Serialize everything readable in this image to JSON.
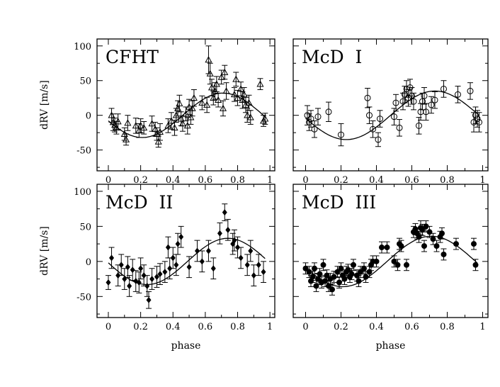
{
  "chart_data": [
    {
      "type": "scatter",
      "title": "CFHT",
      "xlabel": "",
      "ylabel": "dRV [m/s]",
      "xlim": [
        -0.07,
        1.03
      ],
      "ylim": [
        -80,
        110
      ],
      "xticks": [
        "0",
        "0.2",
        "0.4",
        "0.6",
        "0.8",
        "1"
      ],
      "yticks": [
        "-50",
        "0",
        "50",
        "100"
      ],
      "marker": "triangle",
      "fit_curve": {
        "amplitude": 32,
        "peak_phase": 0.71
      },
      "points": [
        {
          "x": 0.02,
          "y": 0,
          "err": 10
        },
        {
          "x": 0.03,
          "y": -10,
          "err": 12
        },
        {
          "x": 0.04,
          "y": -14,
          "err": 10
        },
        {
          "x": 0.05,
          "y": -18,
          "err": 9
        },
        {
          "x": 0.06,
          "y": -9,
          "err": 11
        },
        {
          "x": 0.1,
          "y": -27,
          "err": 9
        },
        {
          "x": 0.11,
          "y": -35,
          "err": 8
        },
        {
          "x": 0.12,
          "y": -11,
          "err": 11
        },
        {
          "x": 0.17,
          "y": -15,
          "err": 11
        },
        {
          "x": 0.19,
          "y": -22,
          "err": 10
        },
        {
          "x": 0.2,
          "y": -15,
          "err": 10
        },
        {
          "x": 0.22,
          "y": -18,
          "err": 9
        },
        {
          "x": 0.27,
          "y": -12,
          "err": 11
        },
        {
          "x": 0.29,
          "y": -20,
          "err": 10
        },
        {
          "x": 0.3,
          "y": -27,
          "err": 9
        },
        {
          "x": 0.31,
          "y": -38,
          "err": 8
        },
        {
          "x": 0.32,
          "y": -24,
          "err": 12
        },
        {
          "x": 0.37,
          "y": -15,
          "err": 10
        },
        {
          "x": 0.39,
          "y": -8,
          "err": 12
        },
        {
          "x": 0.41,
          "y": -18,
          "err": 11
        },
        {
          "x": 0.42,
          "y": 0,
          "err": 10
        },
        {
          "x": 0.43,
          "y": 10,
          "err": 11
        },
        {
          "x": 0.44,
          "y": 17,
          "err": 12
        },
        {
          "x": 0.45,
          "y": -5,
          "err": 10
        },
        {
          "x": 0.46,
          "y": -12,
          "err": 11
        },
        {
          "x": 0.48,
          "y": 2,
          "err": 10
        },
        {
          "x": 0.49,
          "y": -15,
          "err": 12
        },
        {
          "x": 0.5,
          "y": 12,
          "err": 11
        },
        {
          "x": 0.51,
          "y": -3,
          "err": 10
        },
        {
          "x": 0.52,
          "y": 10,
          "err": 11
        },
        {
          "x": 0.53,
          "y": 25,
          "err": 12
        },
        {
          "x": 0.58,
          "y": 18,
          "err": 10
        },
        {
          "x": 0.61,
          "y": 15,
          "err": 11
        },
        {
          "x": 0.62,
          "y": 80,
          "err": 20
        },
        {
          "x": 0.63,
          "y": 60,
          "err": 15
        },
        {
          "x": 0.64,
          "y": 40,
          "err": 12
        },
        {
          "x": 0.65,
          "y": 25,
          "err": 10
        },
        {
          "x": 0.66,
          "y": 35,
          "err": 12
        },
        {
          "x": 0.67,
          "y": 45,
          "err": 11
        },
        {
          "x": 0.68,
          "y": 22,
          "err": 10
        },
        {
          "x": 0.7,
          "y": 55,
          "err": 10
        },
        {
          "x": 0.71,
          "y": 10,
          "err": 11
        },
        {
          "x": 0.72,
          "y": 62,
          "err": 10
        },
        {
          "x": 0.73,
          "y": 35,
          "err": 12
        },
        {
          "x": 0.78,
          "y": 30,
          "err": 10
        },
        {
          "x": 0.79,
          "y": 52,
          "err": 10
        },
        {
          "x": 0.8,
          "y": 25,
          "err": 11
        },
        {
          "x": 0.82,
          "y": 38,
          "err": 10
        },
        {
          "x": 0.83,
          "y": 22,
          "err": 12
        },
        {
          "x": 0.84,
          "y": 30,
          "err": 10
        },
        {
          "x": 0.85,
          "y": 15,
          "err": 11
        },
        {
          "x": 0.86,
          "y": 0,
          "err": 10
        },
        {
          "x": 0.87,
          "y": 18,
          "err": 11
        },
        {
          "x": 0.88,
          "y": -3,
          "err": 10
        },
        {
          "x": 0.94,
          "y": 45,
          "err": 8
        },
        {
          "x": 0.96,
          "y": -8,
          "err": 8
        },
        {
          "x": 0.97,
          "y": -5,
          "err": 8
        }
      ]
    },
    {
      "type": "scatter",
      "title": "McD  I",
      "xlabel": "",
      "ylabel": "",
      "xlim": [
        -0.07,
        1.03
      ],
      "ylim": [
        -80,
        110
      ],
      "xticks": [
        "0",
        "0.2",
        "0.4",
        "0.6",
        "0.8",
        "1"
      ],
      "yticks": [
        "-50",
        "0",
        "50",
        "100"
      ],
      "marker": "open-circle",
      "fit_curve": {
        "amplitude": 35,
        "peak_phase": 0.73
      },
      "points": [
        {
          "x": 0.01,
          "y": 0,
          "err": 14
        },
        {
          "x": 0.02,
          "y": -10,
          "err": 12
        },
        {
          "x": 0.03,
          "y": -5,
          "err": 12
        },
        {
          "x": 0.05,
          "y": -20,
          "err": 12
        },
        {
          "x": 0.07,
          "y": -2,
          "err": 12
        },
        {
          "x": 0.13,
          "y": 5,
          "err": 14
        },
        {
          "x": 0.2,
          "y": -28,
          "err": 16
        },
        {
          "x": 0.35,
          "y": 25,
          "err": 14
        },
        {
          "x": 0.36,
          "y": 0,
          "err": 12
        },
        {
          "x": 0.38,
          "y": -20,
          "err": 12
        },
        {
          "x": 0.41,
          "y": -35,
          "err": 10
        },
        {
          "x": 0.42,
          "y": -5,
          "err": 12
        },
        {
          "x": 0.5,
          "y": -2,
          "err": 12
        },
        {
          "x": 0.51,
          "y": 18,
          "err": 12
        },
        {
          "x": 0.53,
          "y": -18,
          "err": 12
        },
        {
          "x": 0.55,
          "y": 20,
          "err": 12
        },
        {
          "x": 0.56,
          "y": 30,
          "err": 12
        },
        {
          "x": 0.57,
          "y": 38,
          "err": 12
        },
        {
          "x": 0.58,
          "y": 25,
          "err": 12
        },
        {
          "x": 0.59,
          "y": 40,
          "err": 12
        },
        {
          "x": 0.6,
          "y": 28,
          "err": 12
        },
        {
          "x": 0.61,
          "y": 20,
          "err": 12
        },
        {
          "x": 0.64,
          "y": -15,
          "err": 12
        },
        {
          "x": 0.65,
          "y": 5,
          "err": 12
        },
        {
          "x": 0.66,
          "y": 20,
          "err": 12
        },
        {
          "x": 0.67,
          "y": 28,
          "err": 12
        },
        {
          "x": 0.68,
          "y": 5,
          "err": 12
        },
        {
          "x": 0.71,
          "y": 15,
          "err": 12
        },
        {
          "x": 0.73,
          "y": 22,
          "err": 12
        },
        {
          "x": 0.78,
          "y": 38,
          "err": 12
        },
        {
          "x": 0.86,
          "y": 30,
          "err": 12
        },
        {
          "x": 0.93,
          "y": 35,
          "err": 12
        },
        {
          "x": 0.95,
          "y": -10,
          "err": 14
        },
        {
          "x": 0.96,
          "y": 0,
          "err": 12
        },
        {
          "x": 0.97,
          "y": -5,
          "err": 12
        },
        {
          "x": 0.98,
          "y": -10,
          "err": 14
        }
      ]
    },
    {
      "type": "scatter",
      "title": "McD  II",
      "xlabel": "phase",
      "ylabel": "dRV [m/s]",
      "xlim": [
        -0.07,
        1.03
      ],
      "ylim": [
        -80,
        110
      ],
      "xticks": [
        "0",
        "0.2",
        "0.4",
        "0.6",
        "0.8",
        "1"
      ],
      "yticks": [
        "-50",
        "0",
        "50",
        "100"
      ],
      "marker": "filled-diamond",
      "fit_curve": {
        "amplitude": 33,
        "peak_phase": 0.74
      },
      "points": [
        {
          "x": 0.0,
          "y": -30,
          "err": 10
        },
        {
          "x": 0.02,
          "y": 5,
          "err": 15
        },
        {
          "x": 0.06,
          "y": -20,
          "err": 15
        },
        {
          "x": 0.08,
          "y": -5,
          "err": 15
        },
        {
          "x": 0.1,
          "y": -25,
          "err": 15
        },
        {
          "x": 0.12,
          "y": -8,
          "err": 15
        },
        {
          "x": 0.13,
          "y": -35,
          "err": 15
        },
        {
          "x": 0.15,
          "y": -12,
          "err": 15
        },
        {
          "x": 0.17,
          "y": -28,
          "err": 15
        },
        {
          "x": 0.19,
          "y": -30,
          "err": 15
        },
        {
          "x": 0.2,
          "y": -10,
          "err": 15
        },
        {
          "x": 0.22,
          "y": -20,
          "err": 15
        },
        {
          "x": 0.24,
          "y": -35,
          "err": 15
        },
        {
          "x": 0.25,
          "y": -55,
          "err": 12
        },
        {
          "x": 0.27,
          "y": -25,
          "err": 15
        },
        {
          "x": 0.3,
          "y": -22,
          "err": 15
        },
        {
          "x": 0.32,
          "y": -18,
          "err": 15
        },
        {
          "x": 0.35,
          "y": -15,
          "err": 15
        },
        {
          "x": 0.37,
          "y": 20,
          "err": 15
        },
        {
          "x": 0.38,
          "y": -10,
          "err": 15
        },
        {
          "x": 0.4,
          "y": 5,
          "err": 15
        },
        {
          "x": 0.42,
          "y": -5,
          "err": 15
        },
        {
          "x": 0.43,
          "y": 25,
          "err": 15
        },
        {
          "x": 0.45,
          "y": 35,
          "err": 15
        },
        {
          "x": 0.5,
          "y": -8,
          "err": 15
        },
        {
          "x": 0.55,
          "y": 15,
          "err": 15
        },
        {
          "x": 0.58,
          "y": 0,
          "err": 15
        },
        {
          "x": 0.62,
          "y": 15,
          "err": 15
        },
        {
          "x": 0.65,
          "y": -10,
          "err": 15
        },
        {
          "x": 0.69,
          "y": 40,
          "err": 15
        },
        {
          "x": 0.72,
          "y": 70,
          "err": 12
        },
        {
          "x": 0.74,
          "y": 45,
          "err": 15
        },
        {
          "x": 0.77,
          "y": 25,
          "err": 15
        },
        {
          "x": 0.78,
          "y": 30,
          "err": 15
        },
        {
          "x": 0.8,
          "y": 20,
          "err": 15
        },
        {
          "x": 0.82,
          "y": 5,
          "err": 15
        },
        {
          "x": 0.86,
          "y": -5,
          "err": 15
        },
        {
          "x": 0.88,
          "y": 15,
          "err": 15
        },
        {
          "x": 0.9,
          "y": -20,
          "err": 15
        },
        {
          "x": 0.93,
          "y": -5,
          "err": 15
        },
        {
          "x": 0.96,
          "y": -15,
          "err": 15
        }
      ]
    },
    {
      "type": "scatter",
      "title": "McD  III",
      "xlabel": "phase",
      "ylabel": "",
      "xlim": [
        -0.07,
        1.03
      ],
      "ylim": [
        -80,
        110
      ],
      "xticks": [
        "0",
        "0.2",
        "0.4",
        "0.6",
        "0.8",
        "1"
      ],
      "yticks": [
        "-50",
        "0",
        "50",
        "100"
      ],
      "marker": "filled-circle",
      "fit_curve": {
        "amplitude": 36,
        "peak_phase": 0.71
      },
      "points": [
        {
          "x": 0.0,
          "y": -10,
          "err": 8
        },
        {
          "x": 0.02,
          "y": -15,
          "err": 8
        },
        {
          "x": 0.03,
          "y": -28,
          "err": 8
        },
        {
          "x": 0.04,
          "y": -22,
          "err": 8
        },
        {
          "x": 0.05,
          "y": -10,
          "err": 8
        },
        {
          "x": 0.06,
          "y": -35,
          "err": 8
        },
        {
          "x": 0.07,
          "y": -25,
          "err": 8
        },
        {
          "x": 0.08,
          "y": -18,
          "err": 8
        },
        {
          "x": 0.09,
          "y": -30,
          "err": 8
        },
        {
          "x": 0.1,
          "y": -5,
          "err": 8
        },
        {
          "x": 0.11,
          "y": -28,
          "err": 8
        },
        {
          "x": 0.12,
          "y": -20,
          "err": 8
        },
        {
          "x": 0.13,
          "y": -35,
          "err": 8
        },
        {
          "x": 0.14,
          "y": -25,
          "err": 8
        },
        {
          "x": 0.15,
          "y": -40,
          "err": 8
        },
        {
          "x": 0.16,
          "y": -22,
          "err": 8
        },
        {
          "x": 0.18,
          "y": -15,
          "err": 8
        },
        {
          "x": 0.19,
          "y": -30,
          "err": 8
        },
        {
          "x": 0.2,
          "y": -10,
          "err": 8
        },
        {
          "x": 0.21,
          "y": -20,
          "err": 8
        },
        {
          "x": 0.22,
          "y": -25,
          "err": 8
        },
        {
          "x": 0.23,
          "y": -15,
          "err": 8
        },
        {
          "x": 0.24,
          "y": -12,
          "err": 8
        },
        {
          "x": 0.25,
          "y": -22,
          "err": 8
        },
        {
          "x": 0.26,
          "y": -18,
          "err": 8
        },
        {
          "x": 0.27,
          "y": -5,
          "err": 8
        },
        {
          "x": 0.29,
          "y": -20,
          "err": 8
        },
        {
          "x": 0.3,
          "y": -28,
          "err": 8
        },
        {
          "x": 0.31,
          "y": -15,
          "err": 8
        },
        {
          "x": 0.33,
          "y": -10,
          "err": 8
        },
        {
          "x": 0.34,
          "y": -22,
          "err": 8
        },
        {
          "x": 0.36,
          "y": -15,
          "err": 8
        },
        {
          "x": 0.37,
          "y": -5,
          "err": 8
        },
        {
          "x": 0.38,
          "y": 0,
          "err": 8
        },
        {
          "x": 0.4,
          "y": 0,
          "err": 8
        },
        {
          "x": 0.43,
          "y": 20,
          "err": 8
        },
        {
          "x": 0.46,
          "y": 20,
          "err": 8
        },
        {
          "x": 0.5,
          "y": 0,
          "err": 8
        },
        {
          "x": 0.52,
          "y": -5,
          "err": 8
        },
        {
          "x": 0.53,
          "y": 25,
          "err": 8
        },
        {
          "x": 0.54,
          "y": 22,
          "err": 8
        },
        {
          "x": 0.57,
          "y": -5,
          "err": 8
        },
        {
          "x": 0.61,
          "y": 42,
          "err": 8
        },
        {
          "x": 0.62,
          "y": 46,
          "err": 8
        },
        {
          "x": 0.63,
          "y": 40,
          "err": 8
        },
        {
          "x": 0.64,
          "y": 35,
          "err": 8
        },
        {
          "x": 0.65,
          "y": 48,
          "err": 10
        },
        {
          "x": 0.66,
          "y": 45,
          "err": 8
        },
        {
          "x": 0.67,
          "y": 22,
          "err": 8
        },
        {
          "x": 0.68,
          "y": 50,
          "err": 8
        },
        {
          "x": 0.7,
          "y": 42,
          "err": 8
        },
        {
          "x": 0.72,
          "y": 32,
          "err": 8
        },
        {
          "x": 0.74,
          "y": 22,
          "err": 8
        },
        {
          "x": 0.76,
          "y": 35,
          "err": 8
        },
        {
          "x": 0.77,
          "y": 40,
          "err": 8
        },
        {
          "x": 0.78,
          "y": 10,
          "err": 8
        },
        {
          "x": 0.85,
          "y": 25,
          "err": 8
        },
        {
          "x": 0.95,
          "y": 25,
          "err": 8
        },
        {
          "x": 0.96,
          "y": -5,
          "err": 8
        }
      ]
    }
  ]
}
